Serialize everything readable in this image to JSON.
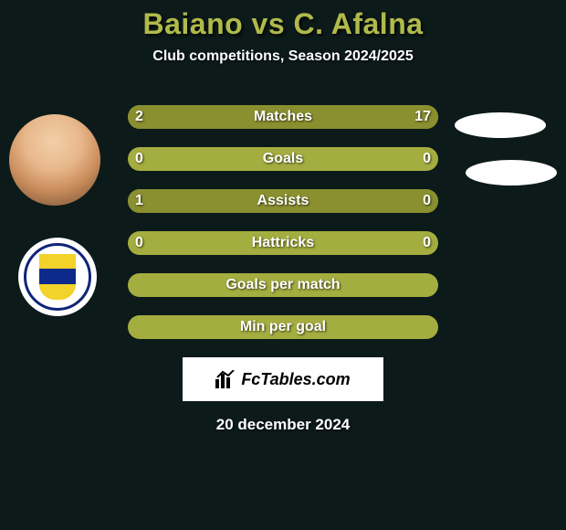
{
  "title": "Baiano vs C. Afalna",
  "subtitle": "Club competitions, Season 2024/2025",
  "footer_brand": "FcTables.com",
  "footer_date": "20 december 2024",
  "colors": {
    "background": "#0d1a1a",
    "title": "#b0ba4a",
    "bar_bg": "#a4ad3f",
    "bar_fill": "#8a8f2f",
    "text": "#ffffff"
  },
  "rows": [
    {
      "label": "Matches",
      "left": "2",
      "right": "17",
      "left_pct": 10,
      "right_pct": 90
    },
    {
      "label": "Goals",
      "left": "0",
      "right": "0",
      "left_pct": 0,
      "right_pct": 0
    },
    {
      "label": "Assists",
      "left": "1",
      "right": "0",
      "left_pct": 100,
      "right_pct": 0
    },
    {
      "label": "Hattricks",
      "left": "0",
      "right": "0",
      "left_pct": 0,
      "right_pct": 0
    },
    {
      "label": "Goals per match",
      "left": "",
      "right": "",
      "left_pct": 0,
      "right_pct": 0
    },
    {
      "label": "Min per goal",
      "left": "",
      "right": "",
      "left_pct": 0,
      "right_pct": 0
    }
  ],
  "avatars": {
    "left_player": "player-photo",
    "left_club": "petrolul-ploiesti-badge",
    "right_shape_1": "oval-placeholder",
    "right_shape_2": "oval-placeholder"
  }
}
